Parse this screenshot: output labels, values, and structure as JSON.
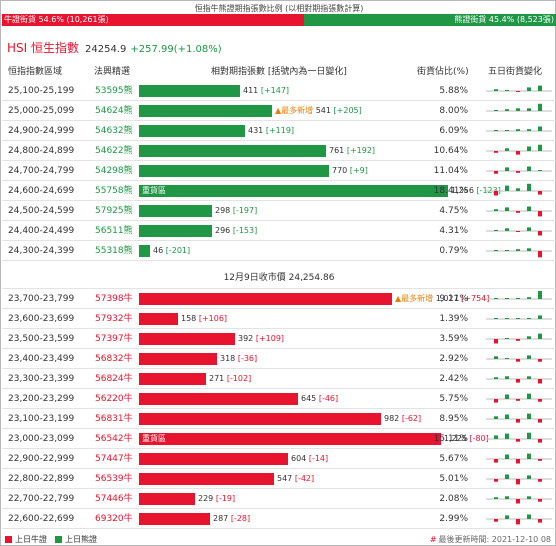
{
  "ratio": {
    "title": "恒指牛熊證期指張數比例 (以相對期指張數計算)",
    "bull_label": "牛證街貨 54.6% (10,261張)",
    "bull_fraction": 0.546,
    "bear_label": "熊證街貨 45.4% (8,523張)",
    "bear_fraction": 0.454
  },
  "index": {
    "name": "HSI 恒生指數",
    "price": "24254.9",
    "change": "+257.99(+1.08%)"
  },
  "columns": {
    "range": "恒指指數區域",
    "code": "法興精選",
    "contracts": "相對期指張數 [括號內為一日變化]",
    "share": "街貨佔比(%)",
    "history": "五日街貨變化"
  },
  "close_line": "12月9日收市價 24,254.86",
  "hot_label": "重貨區",
  "new_label": "▲最多新增",
  "colors": {
    "bull": "#e8132f",
    "bear": "#1f9745",
    "flag": "#e87e0a"
  },
  "bear_rows": [
    {
      "range": "25,100-25,199",
      "code": "53595熊",
      "contracts": 411,
      "contracts_text": "411",
      "change": "[+147]",
      "share": "5.88%",
      "hot": false,
      "new": false,
      "spark": [
        0.2,
        0.1,
        -0.1,
        0.4,
        0.6
      ]
    },
    {
      "range": "25,000-25,099",
      "code": "54624熊",
      "contracts": 541,
      "contracts_text": "541",
      "change": "[+205]",
      "share": "8.00%",
      "hot": false,
      "new": true,
      "spark": [
        0.0,
        0.2,
        0.3,
        0.3,
        0.8
      ]
    },
    {
      "range": "24,900-24,999",
      "code": "54632熊",
      "contracts": 431,
      "contracts_text": "431",
      "change": "[+119]",
      "share": "6.09%",
      "hot": false,
      "new": false,
      "spark": [
        0.1,
        0.1,
        0.2,
        0.2,
        0.5
      ]
    },
    {
      "range": "24,800-24,899",
      "code": "54622熊",
      "contracts": 761,
      "contracts_text": "761",
      "change": "[+192]",
      "share": "10.64%",
      "hot": false,
      "new": false,
      "spark": [
        -0.2,
        0.3,
        -0.4,
        0.5,
        0.7
      ]
    },
    {
      "range": "24,700-24,799",
      "code": "54298熊",
      "contracts": 770,
      "contracts_text": "770",
      "change": "[+9]",
      "share": "11.04%",
      "hot": false,
      "new": false,
      "spark": [
        -0.3,
        0.4,
        -0.2,
        0.5,
        0.1
      ]
    },
    {
      "range": "24,600-24,699",
      "code": "55758熊",
      "contracts": 1256,
      "contracts_text": "1,256",
      "change": "[-123]",
      "share": "18.41%",
      "hot": true,
      "new": false,
      "spark": [
        -0.5,
        0.6,
        0.3,
        0.8,
        -0.4
      ]
    },
    {
      "range": "24,500-24,599",
      "code": "57925熊",
      "contracts": 298,
      "contracts_text": "298",
      "change": "[-197]",
      "share": "4.75%",
      "hot": false,
      "new": false,
      "spark": [
        0.2,
        0.4,
        -0.2,
        0.5,
        -0.6
      ]
    },
    {
      "range": "24,400-24,499",
      "code": "56511熊",
      "contracts": 296,
      "contracts_text": "296",
      "change": "[-153]",
      "share": "4.31%",
      "hot": false,
      "new": false,
      "spark": [
        0.1,
        0.3,
        -0.1,
        0.4,
        -0.5
      ]
    },
    {
      "range": "24,300-24,399",
      "code": "55318熊",
      "contracts": 46,
      "contracts_text": "46",
      "change": "[-201]",
      "share": "0.79%",
      "hot": false,
      "new": false,
      "spark": [
        0.1,
        0.1,
        0.2,
        0.3,
        -0.7
      ]
    }
  ],
  "bull_rows": [
    {
      "range": "23,700-23,799",
      "code": "57398牛",
      "contracts": 1027,
      "contracts_text": "1,027",
      "change": "[+754]",
      "share": "9.11%",
      "hot": false,
      "new": true,
      "spark": [
        0.0,
        0.1,
        0.1,
        0.2,
        0.9
      ]
    },
    {
      "range": "23,600-23,699",
      "code": "57932牛",
      "contracts": 158,
      "contracts_text": "158",
      "change": "[+106]",
      "share": "1.39%",
      "hot": false,
      "new": false,
      "spark": [
        0.0,
        0.0,
        0.1,
        0.1,
        0.4
      ]
    },
    {
      "range": "23,500-23,599",
      "code": "57397牛",
      "contracts": 392,
      "contracts_text": "392",
      "change": "[+109]",
      "share": "3.59%",
      "hot": false,
      "new": false,
      "spark": [
        -0.5,
        0.1,
        -0.2,
        0.3,
        0.6
      ]
    },
    {
      "range": "23,400-23,499",
      "code": "56832牛",
      "contracts": 318,
      "contracts_text": "318",
      "change": "[-36]",
      "share": "2.92%",
      "hot": false,
      "new": false,
      "spark": [
        0.3,
        0.1,
        -0.3,
        0.4,
        -0.3
      ]
    },
    {
      "range": "23,300-23,399",
      "code": "56824牛",
      "contracts": 271,
      "contracts_text": "271",
      "change": "[-102]",
      "share": "2.42%",
      "hot": false,
      "new": false,
      "spark": [
        0.2,
        0.3,
        -0.4,
        0.3,
        -0.5
      ]
    },
    {
      "range": "23,200-23,299",
      "code": "56220牛",
      "contracts": 645,
      "contracts_text": "645",
      "change": "[-46]",
      "share": "5.75%",
      "hot": false,
      "new": false,
      "spark": [
        -0.4,
        0.5,
        -0.2,
        0.6,
        -0.3
      ]
    },
    {
      "range": "23,100-23,199",
      "code": "56831牛",
      "contracts": 982,
      "contracts_text": "982",
      "change": "[-62]",
      "share": "8.95%",
      "hot": false,
      "new": false,
      "spark": [
        0.3,
        0.5,
        -0.4,
        0.6,
        -0.4
      ]
    },
    {
      "range": "23,000-23,099",
      "code": "56542牛",
      "contracts": 1225,
      "contracts_text": "1,225",
      "change": "[-80]",
      "share": "15.11%",
      "hot": true,
      "new": false,
      "spark": [
        0.4,
        0.6,
        -0.3,
        0.7,
        -0.4
      ]
    },
    {
      "range": "22,900-22,999",
      "code": "57447牛",
      "contracts": 604,
      "contracts_text": "604",
      "change": "[-14]",
      "share": "5.67%",
      "hot": false,
      "new": false,
      "spark": [
        -0.4,
        0.5,
        -0.5,
        0.6,
        -0.2
      ]
    },
    {
      "range": "22,800-22,899",
      "code": "56539牛",
      "contracts": 547,
      "contracts_text": "547",
      "change": "[-42]",
      "share": "5.01%",
      "hot": false,
      "new": false,
      "spark": [
        -0.3,
        0.5,
        -0.6,
        0.4,
        -0.3
      ]
    },
    {
      "range": "22,700-22,799",
      "code": "57446牛",
      "contracts": 229,
      "contracts_text": "229",
      "change": "[-19]",
      "share": "2.08%",
      "hot": false,
      "new": false,
      "spark": [
        0.2,
        0.3,
        -0.5,
        0.3,
        -0.3
      ]
    },
    {
      "range": "22,600-22,699",
      "code": "69320牛",
      "contracts": 287,
      "contracts_text": "287",
      "change": "[-28]",
      "share": "2.99%",
      "hot": false,
      "new": false,
      "spark": [
        -0.3,
        0.4,
        -0.6,
        0.5,
        -0.4
      ]
    }
  ],
  "legend": {
    "bull": "上日牛證",
    "bear": "上日熊證"
  },
  "update": {
    "mark": "#",
    "text": "最後更新時間: 2021-12-10 08"
  }
}
